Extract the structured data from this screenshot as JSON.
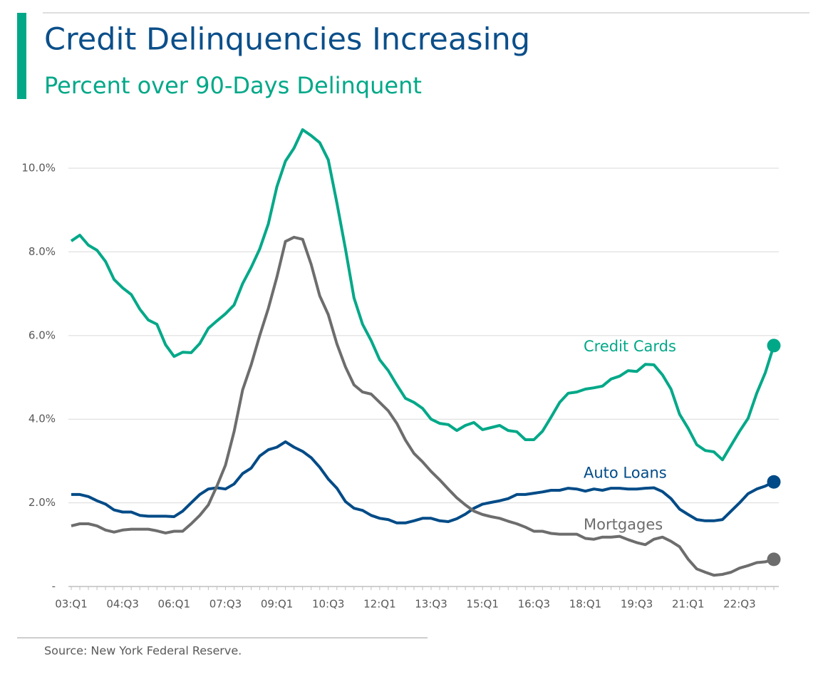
{
  "title": "Credit Delinquencies Increasing",
  "subtitle": "Percent over 90-Days Delinquent",
  "source": "Source: New York Federal Reserve.",
  "chart_data": {
    "type": "line",
    "categories": [
      "03:Q1",
      null,
      null,
      null,
      null,
      null,
      "04:Q3",
      null,
      null,
      null,
      null,
      null,
      "06:Q1",
      null,
      null,
      null,
      null,
      null,
      "07:Q3",
      null,
      null,
      null,
      null,
      null,
      "09:Q1",
      null,
      null,
      null,
      null,
      null,
      "10:Q3",
      null,
      null,
      null,
      null,
      null,
      "12:Q1",
      null,
      null,
      null,
      null,
      null,
      "13:Q3",
      null,
      null,
      null,
      null,
      null,
      "15:Q1",
      null,
      null,
      null,
      null,
      null,
      "16:Q3",
      null,
      null,
      null,
      null,
      null,
      "18:Q1",
      null,
      null,
      null,
      null,
      null,
      "19:Q3",
      null,
      null,
      null,
      null,
      null,
      "21:Q1",
      null,
      null,
      null,
      null,
      null,
      "22:Q3",
      null,
      null,
      null,
      null
    ],
    "series": [
      {
        "name": "Credit Cards",
        "color": "#00a888",
        "values": [
          8.26,
          8.4,
          8.16,
          8.04,
          7.77,
          7.34,
          7.14,
          6.98,
          6.63,
          6.37,
          6.27,
          5.78,
          5.5,
          5.6,
          5.59,
          5.81,
          6.17,
          6.35,
          6.52,
          6.73,
          7.24,
          7.63,
          8.07,
          8.67,
          9.56,
          10.17,
          10.48,
          10.92,
          10.78,
          10.61,
          10.2,
          9.17,
          8.07,
          6.9,
          6.27,
          5.88,
          5.42,
          5.16,
          4.82,
          4.5,
          4.4,
          4.26,
          4.0,
          3.9,
          3.87,
          3.73,
          3.85,
          3.92,
          3.75,
          3.8,
          3.85,
          3.73,
          3.7,
          3.51,
          3.51,
          3.71,
          4.05,
          4.4,
          4.62,
          4.65,
          4.72,
          4.75,
          4.79,
          4.96,
          5.03,
          5.16,
          5.14,
          5.31,
          5.3,
          5.06,
          4.72,
          4.12,
          3.78,
          3.39,
          3.25,
          3.22,
          3.03,
          3.37,
          3.71,
          4.02,
          4.62,
          5.11,
          5.76
        ]
      },
      {
        "name": "Auto Loans",
        "color": "#004b87",
        "values": [
          2.2,
          2.2,
          2.15,
          2.05,
          1.97,
          1.83,
          1.78,
          1.78,
          1.7,
          1.68,
          1.68,
          1.68,
          1.67,
          1.8,
          2.0,
          2.2,
          2.33,
          2.36,
          2.33,
          2.45,
          2.7,
          2.83,
          3.12,
          3.27,
          3.33,
          3.46,
          3.33,
          3.23,
          3.08,
          2.85,
          2.57,
          2.35,
          2.03,
          1.87,
          1.82,
          1.7,
          1.63,
          1.6,
          1.52,
          1.52,
          1.57,
          1.63,
          1.63,
          1.57,
          1.55,
          1.62,
          1.73,
          1.87,
          1.97,
          2.01,
          2.05,
          2.1,
          2.2,
          2.2,
          2.23,
          2.26,
          2.3,
          2.3,
          2.35,
          2.33,
          2.28,
          2.33,
          2.3,
          2.35,
          2.35,
          2.33,
          2.33,
          2.35,
          2.36,
          2.27,
          2.1,
          1.85,
          1.72,
          1.6,
          1.57,
          1.57,
          1.6,
          1.8,
          2.0,
          2.22,
          2.33,
          2.4,
          2.5
        ]
      },
      {
        "name": "Mortgages",
        "color": "#6d6d6d",
        "values": [
          1.45,
          1.5,
          1.5,
          1.45,
          1.35,
          1.3,
          1.35,
          1.37,
          1.37,
          1.37,
          1.33,
          1.28,
          1.32,
          1.32,
          1.5,
          1.7,
          1.95,
          2.4,
          2.9,
          3.7,
          4.7,
          5.3,
          6.0,
          6.65,
          7.4,
          8.25,
          8.35,
          8.3,
          7.7,
          6.95,
          6.5,
          5.8,
          5.25,
          4.82,
          4.65,
          4.6,
          4.4,
          4.2,
          3.9,
          3.5,
          3.18,
          2.98,
          2.75,
          2.55,
          2.33,
          2.12,
          1.95,
          1.8,
          1.72,
          1.67,
          1.63,
          1.56,
          1.5,
          1.42,
          1.32,
          1.32,
          1.27,
          1.25,
          1.25,
          1.25,
          1.15,
          1.13,
          1.18,
          1.18,
          1.2,
          1.12,
          1.05,
          1.0,
          1.13,
          1.18,
          1.08,
          0.95,
          0.65,
          0.42,
          0.34,
          0.27,
          0.29,
          0.34,
          0.44,
          0.5,
          0.57,
          0.59,
          0.65
        ]
      }
    ],
    "ylim": [
      0,
      11.5
    ],
    "yticks": [
      {
        "value": 0,
        "label": "-"
      },
      {
        "value": 2,
        "label": "2.0%"
      },
      {
        "value": 4,
        "label": "4.0%"
      },
      {
        "value": 6,
        "label": "6.0%"
      },
      {
        "value": 8,
        "label": "8.0%"
      },
      {
        "value": 10,
        "label": "10.0%"
      }
    ],
    "grid": true
  }
}
